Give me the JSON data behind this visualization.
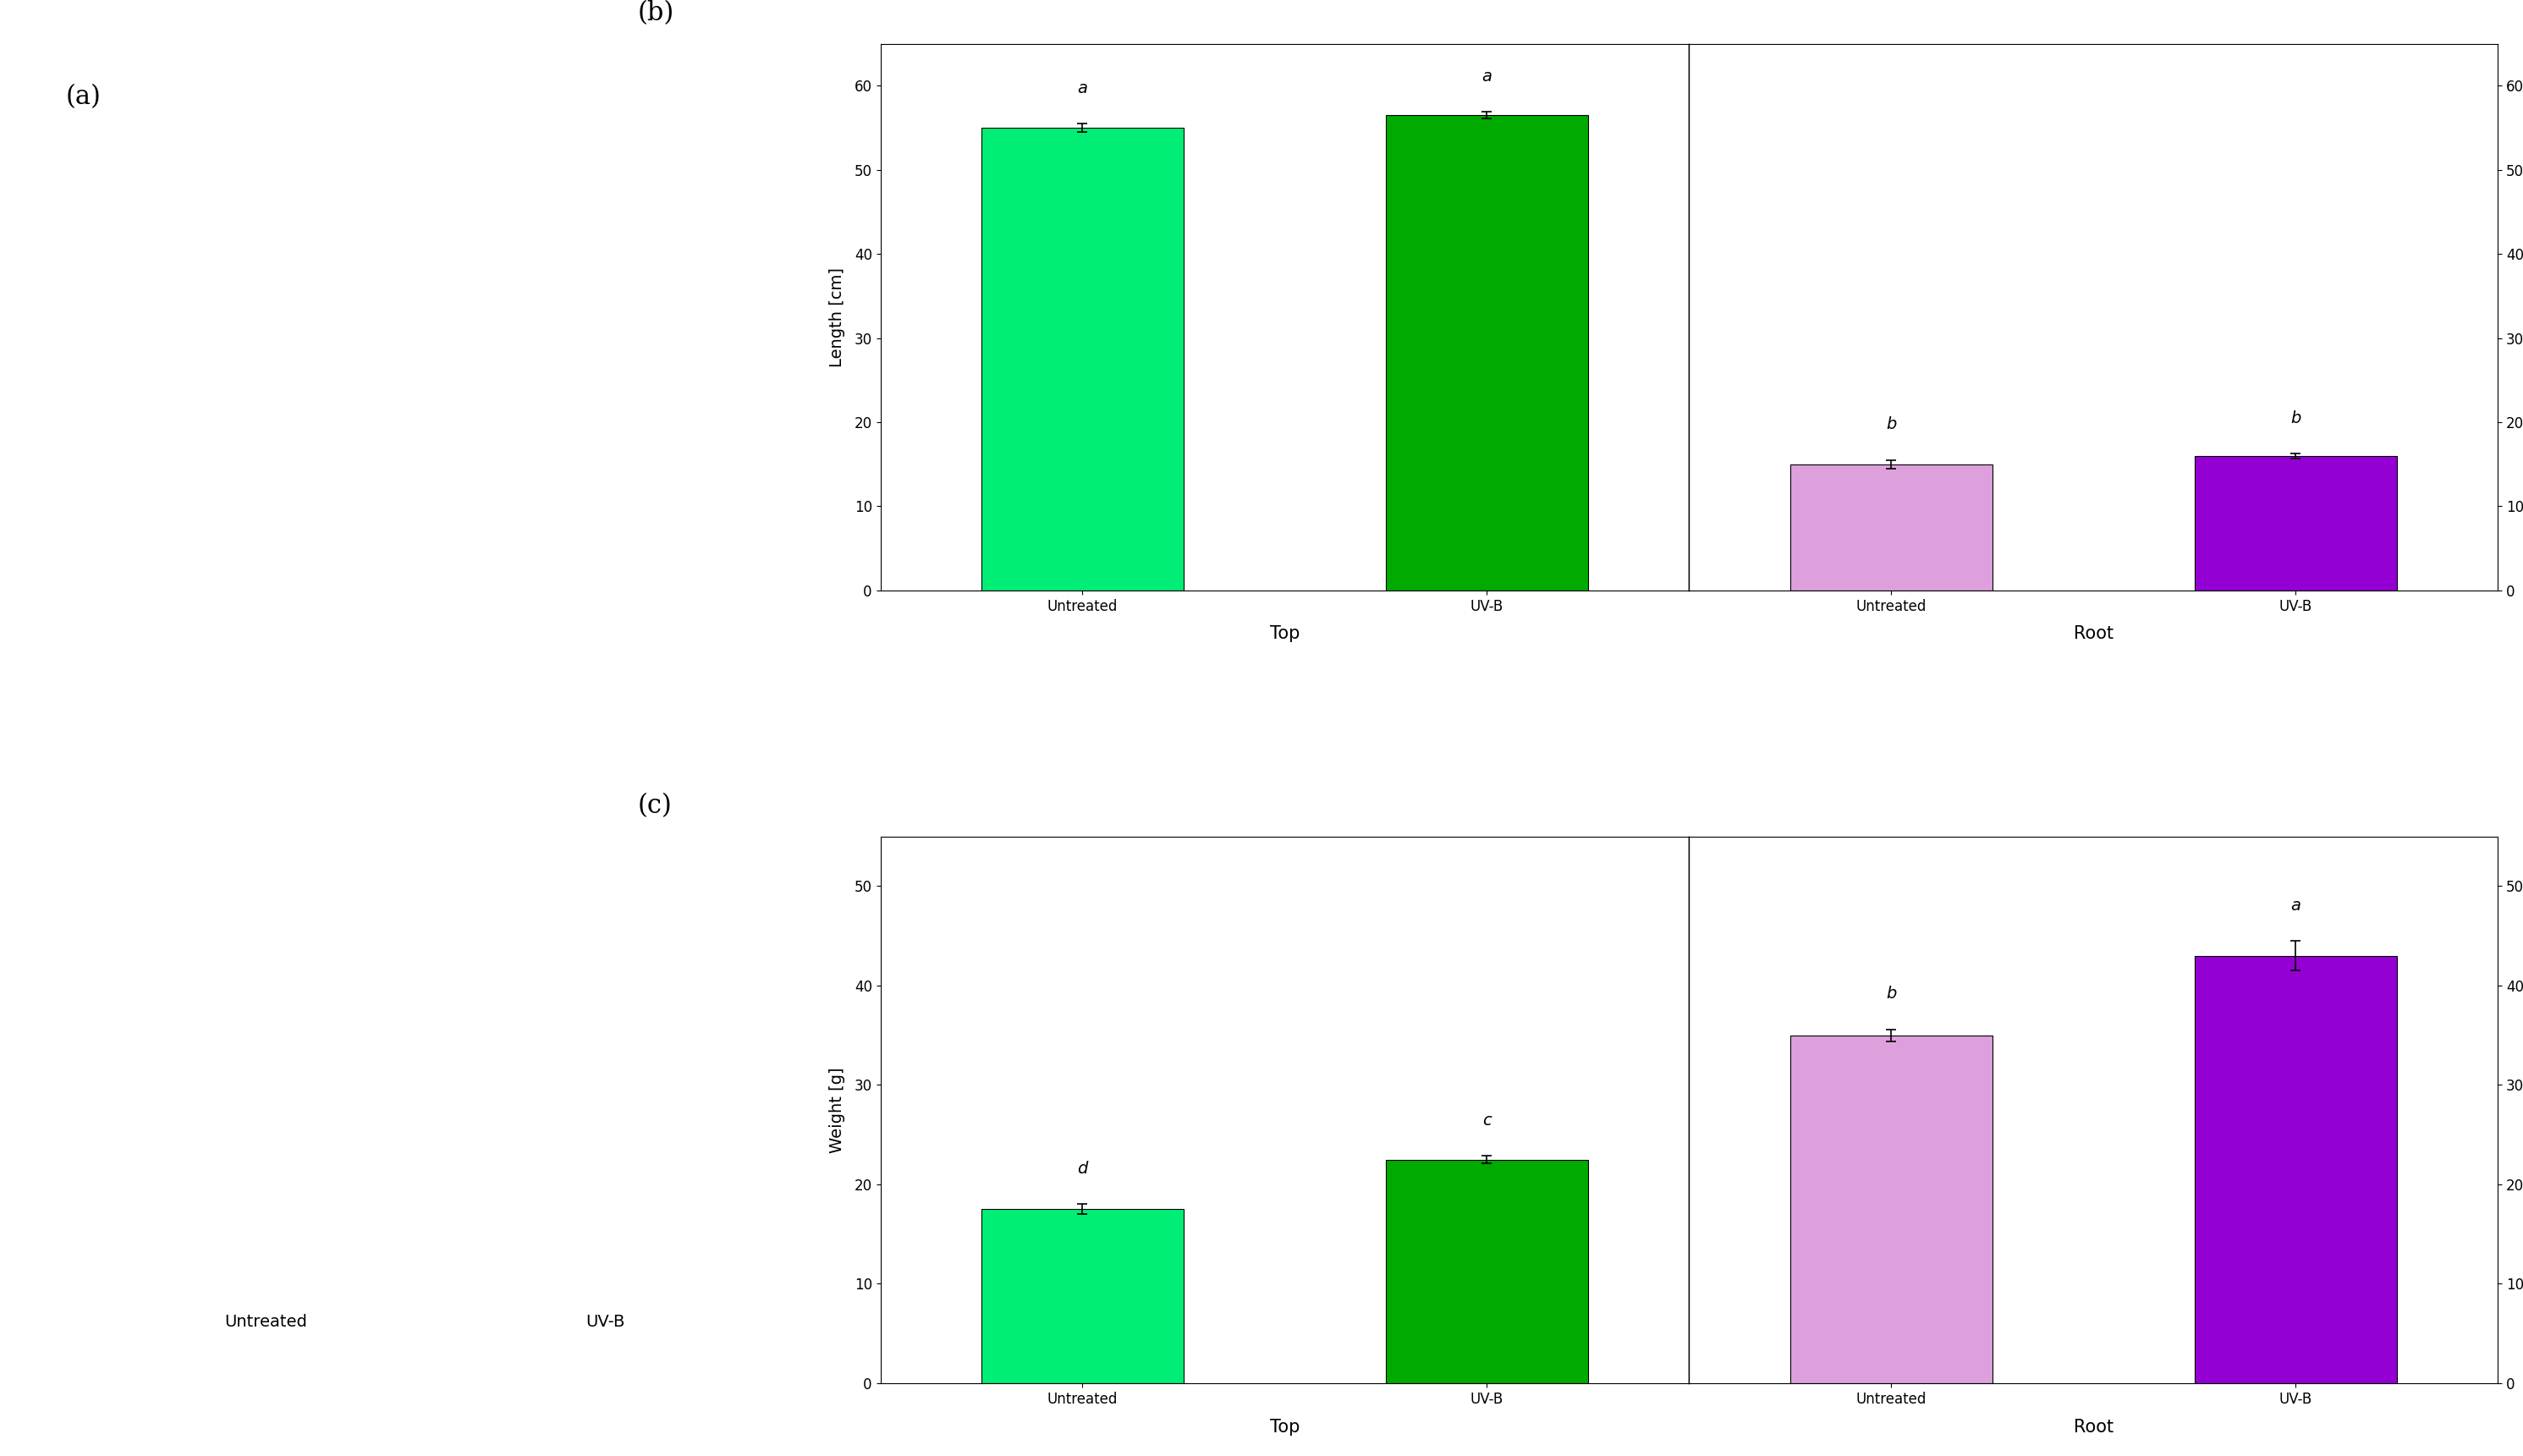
{
  "panel_b": {
    "top_length": {
      "untreated": 55.0,
      "uvb": 56.5,
      "untreated_err": 0.5,
      "uvb_err": 0.4,
      "untreated_letter": "a",
      "uvb_letter": "a",
      "untreated_color": "#00EE76",
      "uvb_color": "#00AA00",
      "ylim": [
        0,
        65
      ],
      "yticks": [
        0,
        10,
        20,
        30,
        40,
        50,
        60
      ],
      "ylabel": "Length [cm]",
      "ylabel_right": "Length [cm]",
      "xlabel": "Top"
    },
    "root_length": {
      "untreated": 15.0,
      "uvb": 16.0,
      "untreated_err": 0.5,
      "uvb_err": 0.3,
      "untreated_letter": "b",
      "uvb_letter": "b",
      "untreated_color": "#DDA0DD",
      "uvb_color": "#9400D3",
      "ylim": [
        0,
        65
      ],
      "yticks": [
        0,
        10,
        20,
        30,
        40,
        50,
        60
      ],
      "ylabel_right": "Length [cm]",
      "xlabel": "Root"
    }
  },
  "panel_c": {
    "top_weight": {
      "untreated": 17.5,
      "uvb": 22.5,
      "untreated_err": 0.5,
      "uvb_err": 0.4,
      "untreated_letter": "d",
      "uvb_letter": "c",
      "untreated_color": "#00EE76",
      "uvb_color": "#00AA00",
      "ylim": [
        0,
        55
      ],
      "yticks": [
        0,
        10,
        20,
        30,
        40,
        50
      ],
      "ylabel": "Weight [g]",
      "ylabel_right": "Weight [g]",
      "xlabel": "Top"
    },
    "root_weight": {
      "untreated": 35.0,
      "uvb": 43.0,
      "untreated_err": 0.6,
      "uvb_err": 1.5,
      "untreated_letter": "b",
      "uvb_letter": "a",
      "untreated_color": "#DDA0DD",
      "uvb_color": "#9400D3",
      "ylim": [
        0,
        55
      ],
      "yticks": [
        0,
        10,
        20,
        30,
        40,
        50
      ],
      "ylabel_right": "Weight [g]",
      "xlabel": "Root"
    }
  },
  "panel_a_label": "(a)",
  "panel_b_label": "(b)",
  "panel_c_label": "(c)",
  "xtick_labels": [
    "Untreated",
    "UV-B"
  ],
  "bar_width": 0.5,
  "letter_fontsize": 14,
  "axis_fontsize": 13,
  "tick_fontsize": 12,
  "label_fontsize": 18,
  "background_color": "#FFFFFF"
}
